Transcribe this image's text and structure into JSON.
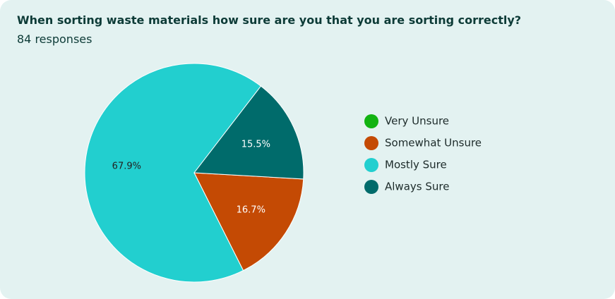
{
  "chart_data": {
    "type": "pie",
    "title": "When sorting waste materials how sure are you that you are sorting correctly?",
    "subtitle": "84 responses",
    "categories": [
      "Very Unsure",
      "Somewhat Unsure",
      "Mostly Sure",
      "Always Sure"
    ],
    "values": [
      0,
      16.7,
      67.9,
      15.5
    ],
    "value_labels": [
      null,
      "16.7%",
      "67.9%",
      "15.5%"
    ],
    "colors": [
      "#12b312",
      "#c44a04",
      "#22cfcf",
      "#006b6b"
    ],
    "legend": "right"
  }
}
